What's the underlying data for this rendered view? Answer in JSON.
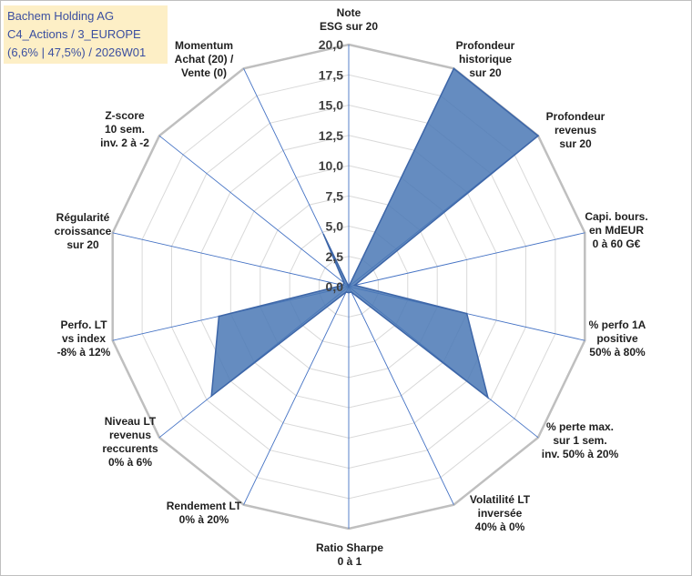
{
  "info_box": {
    "line1": "Bachem Holding AG",
    "line2": "C4_Actions / 3_EUROPE",
    "line3": "(6,6% | 47,5%) / 2026W01"
  },
  "colors": {
    "fill": "#4a78b5",
    "stroke": "#3d66a8",
    "grid": "#d9d9d9",
    "outer_ring": "#bfbfbf",
    "spoke": "#4472c4",
    "info_bg": "#fdefc6",
    "info_text": "#3b4fa0"
  },
  "chart_data": {
    "type": "radar",
    "title": "",
    "rmin": 0,
    "rmax": 20,
    "ticks": [
      "0,0",
      "2,5",
      "5,0",
      "7,5",
      "10,0",
      "12,5",
      "15,0",
      "17,5",
      "20,0"
    ],
    "tick_values": [
      0,
      2.5,
      5,
      7.5,
      10,
      12.5,
      15,
      17.5,
      20
    ],
    "categories": [
      [
        "Note",
        "ESG sur 20"
      ],
      [
        "Profondeur",
        "historique",
        "sur 20"
      ],
      [
        "Profondeur",
        "revenus",
        "sur 20"
      ],
      [
        "Capi. bours.",
        "en MdEUR",
        "0 à 60 G€"
      ],
      [
        "% perfo 1A",
        "positive",
        "50% à 80%"
      ],
      [
        "% perte max.",
        "sur 1 sem.",
        "inv. 50% à 20%"
      ],
      [
        "Volatilité LT",
        "inversée",
        "40% à 0%"
      ],
      [
        "Ratio Sharpe",
        "0 à 1"
      ],
      [
        "Rendement LT",
        "0% à 20%"
      ],
      [
        "Niveau LT",
        "revenus",
        "reccurents",
        "0% à 6%"
      ],
      [
        "Perfo. LT",
        "vs index",
        "-8% à 12%"
      ],
      [
        "Régularité",
        "croissance",
        "sur 20"
      ],
      [
        "Z-score",
        "10 sem.",
        "inv. 2 à -2"
      ],
      [
        "Momentum",
        "Achat (20) /",
        "Vente (0)"
      ]
    ],
    "series": [
      {
        "name": "Bachem Holding AG",
        "values": [
          0,
          20,
          20,
          0.5,
          10,
          14.7,
          0.5,
          0.5,
          0.5,
          14.5,
          11,
          0.5,
          0.5,
          4.8
        ]
      }
    ]
  }
}
